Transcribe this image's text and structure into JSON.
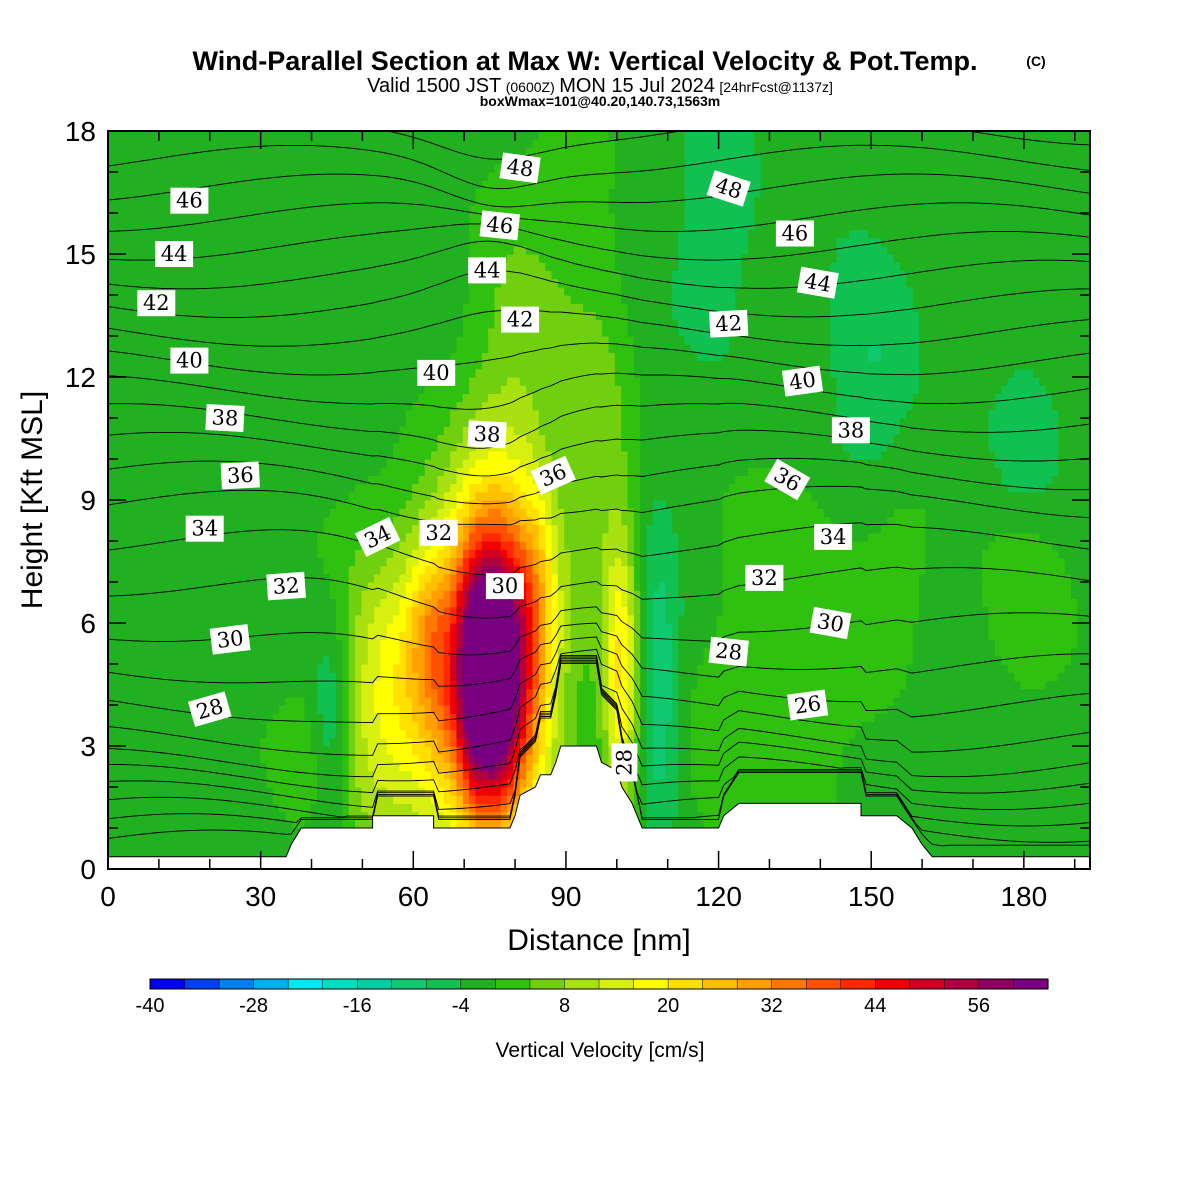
{
  "title": {
    "main": "Wind-Parallel Section at Max W: Vertical Velocity & Pot.Temp.",
    "copyright": "(C)",
    "valid_prefix": "Valid 1500 JST",
    "valid_z": "(0600Z)",
    "valid_date": "MON 15 Jul 2024",
    "forecast": "[24hrFcst@1137z]",
    "boxwmax": "boxWmax=101@40.20,140.73,1563m"
  },
  "chart_data": {
    "type": "heatmap",
    "xlabel": "Distance [nm]",
    "ylabel": "Height [Kft MSL]",
    "xlim": [
      0,
      193
    ],
    "ylim": [
      0,
      18
    ],
    "x_ticks": [
      0,
      30,
      60,
      90,
      120,
      150,
      180
    ],
    "y_ticks": [
      0,
      3,
      6,
      9,
      12,
      15,
      18
    ],
    "colorbar": {
      "label": "Vertical Velocity [cm/s]",
      "min": -40,
      "step": 4,
      "tick_values": [
        -40,
        -28,
        -16,
        -4,
        8,
        20,
        32,
        44,
        56
      ],
      "colors": [
        "#0000f0",
        "#0040f0",
        "#0080f0",
        "#00b0f0",
        "#00e8f0",
        "#00e0c0",
        "#00d0a0",
        "#10c870",
        "#10c050",
        "#20b020",
        "#30c010",
        "#70d010",
        "#a8e010",
        "#d8f010",
        "#ffff00",
        "#ffe000",
        "#ffc000",
        "#ffa000",
        "#ff7800",
        "#ff5000",
        "#ff2800",
        "#f00000",
        "#d00020",
        "#b00040",
        "#900060",
        "#780080"
      ]
    },
    "background_value": -2,
    "w_features": [
      {
        "x": 75,
        "z": 4.8,
        "sx": 5,
        "sz": 2.2,
        "w": 62
      },
      {
        "x": 75,
        "z": 5.0,
        "sx": 9,
        "sz": 3.4,
        "w": 34
      },
      {
        "x": 56,
        "z": 4.2,
        "sx": 9,
        "sz": 2.6,
        "w": 17
      },
      {
        "x": 63,
        "z": 5.8,
        "sx": 3,
        "sz": 1.5,
        "w": 9
      },
      {
        "x": 101,
        "z": 4.5,
        "sx": 2.5,
        "sz": 2.5,
        "w": 21
      },
      {
        "x": 84,
        "z": 6.5,
        "sx": 3,
        "sz": 2.0,
        "w": 10
      },
      {
        "x": 44,
        "z": 3.5,
        "sx": 3,
        "sz": 2.0,
        "w": -12
      },
      {
        "x": 108,
        "z": 4.5,
        "sx": 3,
        "sz": 2.5,
        "w": -10
      },
      {
        "x": 68,
        "z": 4.5,
        "sx": 2,
        "sz": 2.0,
        "w": -6
      },
      {
        "x": 98,
        "z": 9.5,
        "sx": 4,
        "sz": 3.0,
        "w": 6
      },
      {
        "x": 80,
        "z": 12.5,
        "sx": 6,
        "sz": 3.0,
        "w": 6
      },
      {
        "x": 93,
        "z": 15,
        "sx": 6,
        "sz": 4.0,
        "w": 4
      },
      {
        "x": 133,
        "z": 5.5,
        "sx": 12,
        "sz": 3.0,
        "w": 5
      },
      {
        "x": 155,
        "z": 7.5,
        "sx": 6,
        "sz": 2.0,
        "w": 4
      },
      {
        "x": 181,
        "z": 6.5,
        "sx": 6,
        "sz": 1.5,
        "w": 5
      },
      {
        "x": 150,
        "z": 12,
        "sx": 6,
        "sz": 2.0,
        "w": -6
      },
      {
        "x": 180,
        "z": 10.5,
        "sx": 5,
        "sz": 1.5,
        "w": -5
      },
      {
        "x": 120,
        "z": 16,
        "sx": 6,
        "sz": 2.5,
        "w": -5
      },
      {
        "x": 40,
        "z": 2.5,
        "sx": 8,
        "sz": 1.2,
        "w": 4
      },
      {
        "x": 120,
        "z": 2.5,
        "sx": 5,
        "sz": 1.5,
        "w": 4
      }
    ],
    "terrain": [
      [
        0,
        0.3
      ],
      [
        35,
        0.3
      ],
      [
        36,
        0.6
      ],
      [
        38,
        1.0
      ],
      [
        52,
        1.0
      ],
      [
        52,
        1.3
      ],
      [
        64,
        1.3
      ],
      [
        64,
        1.0
      ],
      [
        79,
        1.0
      ],
      [
        80,
        1.3
      ],
      [
        81,
        1.8
      ],
      [
        84,
        2.0
      ],
      [
        85,
        2.3
      ],
      [
        87,
        2.3
      ],
      [
        88,
        2.6
      ],
      [
        89,
        3.0
      ],
      [
        96,
        3.0
      ],
      [
        97,
        2.6
      ],
      [
        100,
        2.4
      ],
      [
        101,
        2.0
      ],
      [
        103,
        1.6
      ],
      [
        105,
        1.0
      ],
      [
        120,
        1.0
      ],
      [
        121,
        1.3
      ],
      [
        124,
        1.6
      ],
      [
        148,
        1.6
      ],
      [
        148,
        1.3
      ],
      [
        155,
        1.3
      ],
      [
        158,
        1.0
      ],
      [
        160,
        0.6
      ],
      [
        162,
        0.3
      ],
      [
        193,
        0.3
      ]
    ],
    "isentropes": {
      "levels": [
        24,
        25,
        26,
        27,
        28,
        29,
        30,
        31,
        32,
        33,
        34,
        35,
        36,
        37,
        38,
        39,
        40,
        41,
        42,
        43,
        44,
        45,
        46,
        47,
        48,
        49
      ],
      "base_height": [
        0.6,
        1.0,
        1.4,
        1.8,
        2.2,
        2.6,
        3.2,
        4.0,
        4.9,
        5.9,
        7.0,
        8.0,
        8.9,
        9.6,
        10.3,
        11.0,
        11.7,
        12.4,
        13.1,
        13.8,
        14.5,
        15.2,
        15.9,
        16.6,
        17.3,
        18.0
      ]
    },
    "contour_labels": [
      {
        "text": "46",
        "x": 16,
        "z": 16.3,
        "angle": 0
      },
      {
        "text": "44",
        "x": 13,
        "z": 15.0,
        "angle": 0
      },
      {
        "text": "42",
        "x": 9.5,
        "z": 13.8,
        "angle": 0
      },
      {
        "text": "40",
        "x": 16,
        "z": 12.4,
        "angle": 0
      },
      {
        "text": "38",
        "x": 23,
        "z": 11.0,
        "angle": 3
      },
      {
        "text": "36",
        "x": 26,
        "z": 9.6,
        "angle": -3
      },
      {
        "text": "34",
        "x": 19,
        "z": 8.3,
        "angle": 0
      },
      {
        "text": "32",
        "x": 35,
        "z": 6.9,
        "angle": -4
      },
      {
        "text": "30",
        "x": 24,
        "z": 5.6,
        "angle": -7
      },
      {
        "text": "28",
        "x": 20,
        "z": 3.9,
        "angle": -16
      },
      {
        "text": "34",
        "x": 53,
        "z": 8.1,
        "angle": -26
      },
      {
        "text": "32",
        "x": 65,
        "z": 8.2,
        "angle": 0
      },
      {
        "text": "30",
        "x": 78,
        "z": 6.9,
        "angle": 0
      },
      {
        "text": "40",
        "x": 64.5,
        "z": 12.1,
        "angle": 0
      },
      {
        "text": "38",
        "x": 74.5,
        "z": 10.6,
        "angle": 3
      },
      {
        "text": "36",
        "x": 87.5,
        "z": 9.6,
        "angle": -24
      },
      {
        "text": "42",
        "x": 81,
        "z": 13.4,
        "angle": 0
      },
      {
        "text": "44",
        "x": 74.5,
        "z": 14.6,
        "angle": 0
      },
      {
        "text": "46",
        "x": 77,
        "z": 15.7,
        "angle": 6
      },
      {
        "text": "48",
        "x": 81,
        "z": 17.1,
        "angle": 8
      },
      {
        "text": "48",
        "x": 122,
        "z": 16.6,
        "angle": 18
      },
      {
        "text": "46",
        "x": 135,
        "z": 15.5,
        "angle": 0
      },
      {
        "text": "44",
        "x": 139.5,
        "z": 14.3,
        "angle": 10
      },
      {
        "text": "42",
        "x": 122,
        "z": 13.3,
        "angle": -3
      },
      {
        "text": "40",
        "x": 136.5,
        "z": 11.9,
        "angle": -8
      },
      {
        "text": "38",
        "x": 146,
        "z": 10.7,
        "angle": 0
      },
      {
        "text": "36",
        "x": 133.5,
        "z": 9.5,
        "angle": 30
      },
      {
        "text": "34",
        "x": 142.5,
        "z": 8.1,
        "angle": 0
      },
      {
        "text": "32",
        "x": 129,
        "z": 7.1,
        "angle": 0
      },
      {
        "text": "30",
        "x": 142,
        "z": 6.0,
        "angle": 10
      },
      {
        "text": "28",
        "x": 122,
        "z": 5.3,
        "angle": 6
      },
      {
        "text": "26",
        "x": 137.5,
        "z": 4.0,
        "angle": -8
      },
      {
        "text": "28",
        "x": 101.5,
        "z": 2.6,
        "angle": -90
      }
    ]
  }
}
